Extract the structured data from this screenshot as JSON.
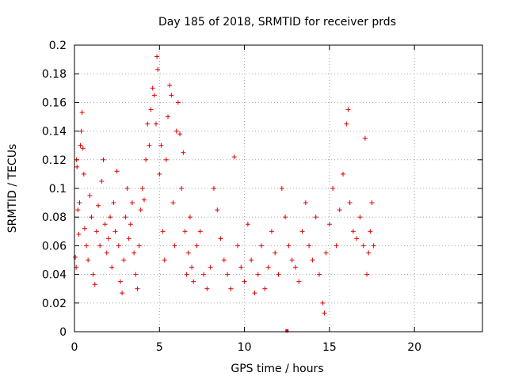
{
  "chart_data": {
    "type": "scatter",
    "title": "Day 185 of 2018, SRMTID for receiver prds",
    "xlabel": "GPS time / hours",
    "ylabel": "SRMTID / TECUs",
    "xlim": [
      0,
      24
    ],
    "ylim": [
      0,
      0.2
    ],
    "xticks": [
      0,
      5,
      10,
      15,
      20
    ],
    "xtick_labels": [
      "0",
      "5",
      "10",
      "15",
      "20"
    ],
    "yticks": [
      0,
      0.02,
      0.04,
      0.06,
      0.08,
      0.1,
      0.12,
      0.14,
      0.16,
      0.18,
      0.2
    ],
    "ytick_labels": [
      "0",
      "0.02",
      "0.04",
      "0.06",
      "0.08",
      "0.1",
      "0.12",
      "0.14",
      "0.16",
      "0.18",
      "0.2"
    ],
    "grid": true,
    "marker": "+",
    "color": "#e00000",
    "series": [
      {
        "name": "SRMTID",
        "points": [
          [
            0.05,
            0.052
          ],
          [
            0.1,
            0.045
          ],
          [
            0.12,
            0.12
          ],
          [
            0.15,
            0.115
          ],
          [
            0.2,
            0.085
          ],
          [
            0.25,
            0.068
          ],
          [
            0.3,
            0.09
          ],
          [
            0.35,
            0.13
          ],
          [
            0.4,
            0.14
          ],
          [
            0.45,
            0.153
          ],
          [
            0.5,
            0.128
          ],
          [
            0.55,
            0.11
          ],
          [
            0.6,
            0.072
          ],
          [
            0.7,
            0.06
          ],
          [
            0.8,
            0.05
          ],
          [
            0.9,
            0.095
          ],
          [
            1.0,
            0.08
          ],
          [
            1.1,
            0.04
          ],
          [
            1.2,
            0.033
          ],
          [
            1.3,
            0.07
          ],
          [
            1.4,
            0.088
          ],
          [
            1.5,
            0.06
          ],
          [
            1.6,
            0.105
          ],
          [
            1.7,
            0.12
          ],
          [
            1.8,
            0.075
          ],
          [
            1.9,
            0.055
          ],
          [
            2.0,
            0.065
          ],
          [
            2.1,
            0.08
          ],
          [
            2.2,
            0.045
          ],
          [
            2.3,
            0.09
          ],
          [
            2.4,
            0.07
          ],
          [
            2.5,
            0.112
          ],
          [
            2.6,
            0.06
          ],
          [
            2.7,
            0.035
          ],
          [
            2.8,
            0.027
          ],
          [
            2.9,
            0.05
          ],
          [
            3.0,
            0.08
          ],
          [
            3.1,
            0.1
          ],
          [
            3.2,
            0.065
          ],
          [
            3.3,
            0.075
          ],
          [
            3.4,
            0.09
          ],
          [
            3.5,
            0.055
          ],
          [
            3.6,
            0.04
          ],
          [
            3.7,
            0.03
          ],
          [
            3.8,
            0.06
          ],
          [
            3.9,
            0.085
          ],
          [
            4.0,
            0.1
          ],
          [
            4.1,
            0.092
          ],
          [
            4.2,
            0.12
          ],
          [
            4.3,
            0.145
          ],
          [
            4.4,
            0.13
          ],
          [
            4.5,
            0.155
          ],
          [
            4.6,
            0.17
          ],
          [
            4.7,
            0.165
          ],
          [
            4.8,
            0.145
          ],
          [
            4.85,
            0.192
          ],
          [
            4.9,
            0.183
          ],
          [
            5.0,
            0.11
          ],
          [
            5.1,
            0.13
          ],
          [
            5.2,
            0.07
          ],
          [
            5.3,
            0.05
          ],
          [
            5.4,
            0.12
          ],
          [
            5.5,
            0.15
          ],
          [
            5.6,
            0.172
          ],
          [
            5.7,
            0.165
          ],
          [
            5.8,
            0.09
          ],
          [
            5.9,
            0.06
          ],
          [
            6.0,
            0.14
          ],
          [
            6.1,
            0.16
          ],
          [
            6.2,
            0.138
          ],
          [
            6.3,
            0.1
          ],
          [
            6.4,
            0.125
          ],
          [
            6.5,
            0.07
          ],
          [
            6.6,
            0.04
          ],
          [
            6.7,
            0.055
          ],
          [
            6.8,
            0.08
          ],
          [
            6.9,
            0.045
          ],
          [
            7.0,
            0.035
          ],
          [
            7.2,
            0.06
          ],
          [
            7.4,
            0.07
          ],
          [
            7.6,
            0.04
          ],
          [
            7.8,
            0.03
          ],
          [
            8.0,
            0.045
          ],
          [
            8.2,
            0.1
          ],
          [
            8.4,
            0.085
          ],
          [
            8.6,
            0.065
          ],
          [
            8.8,
            0.05
          ],
          [
            9.0,
            0.04
          ],
          [
            9.2,
            0.03
          ],
          [
            9.4,
            0.122
          ],
          [
            9.6,
            0.06
          ],
          [
            9.8,
            0.045
          ],
          [
            10.0,
            0.035
          ],
          [
            10.2,
            0.075
          ],
          [
            10.4,
            0.05
          ],
          [
            10.6,
            0.027
          ],
          [
            10.8,
            0.04
          ],
          [
            11.0,
            0.06
          ],
          [
            11.2,
            0.03
          ],
          [
            11.4,
            0.045
          ],
          [
            11.6,
            0.07
          ],
          [
            11.8,
            0.055
          ],
          [
            12.0,
            0.04
          ],
          [
            12.2,
            0.1
          ],
          [
            12.4,
            0.08
          ],
          [
            12.6,
            0.06
          ],
          [
            12.8,
            0.05
          ],
          [
            13.0,
            0.045
          ],
          [
            13.2,
            0.035
          ],
          [
            13.4,
            0.07
          ],
          [
            13.6,
            0.09
          ],
          [
            13.8,
            0.06
          ],
          [
            14.0,
            0.05
          ],
          [
            14.2,
            0.08
          ],
          [
            14.4,
            0.04
          ],
          [
            14.6,
            0.02
          ],
          [
            14.7,
            0.013
          ],
          [
            14.8,
            0.055
          ],
          [
            15.0,
            0.075
          ],
          [
            15.2,
            0.1
          ],
          [
            15.4,
            0.06
          ],
          [
            15.6,
            0.085
          ],
          [
            15.8,
            0.11
          ],
          [
            16.0,
            0.145
          ],
          [
            16.1,
            0.155
          ],
          [
            16.2,
            0.09
          ],
          [
            16.4,
            0.07
          ],
          [
            16.6,
            0.065
          ],
          [
            16.8,
            0.08
          ],
          [
            17.0,
            0.06
          ],
          [
            17.1,
            0.135
          ],
          [
            17.2,
            0.04
          ],
          [
            17.3,
            0.055
          ],
          [
            17.4,
            0.07
          ],
          [
            17.5,
            0.09
          ],
          [
            17.6,
            0.06
          ]
        ]
      }
    ],
    "outlier_marker": {
      "x": 12.5,
      "y": 0.0
    }
  }
}
